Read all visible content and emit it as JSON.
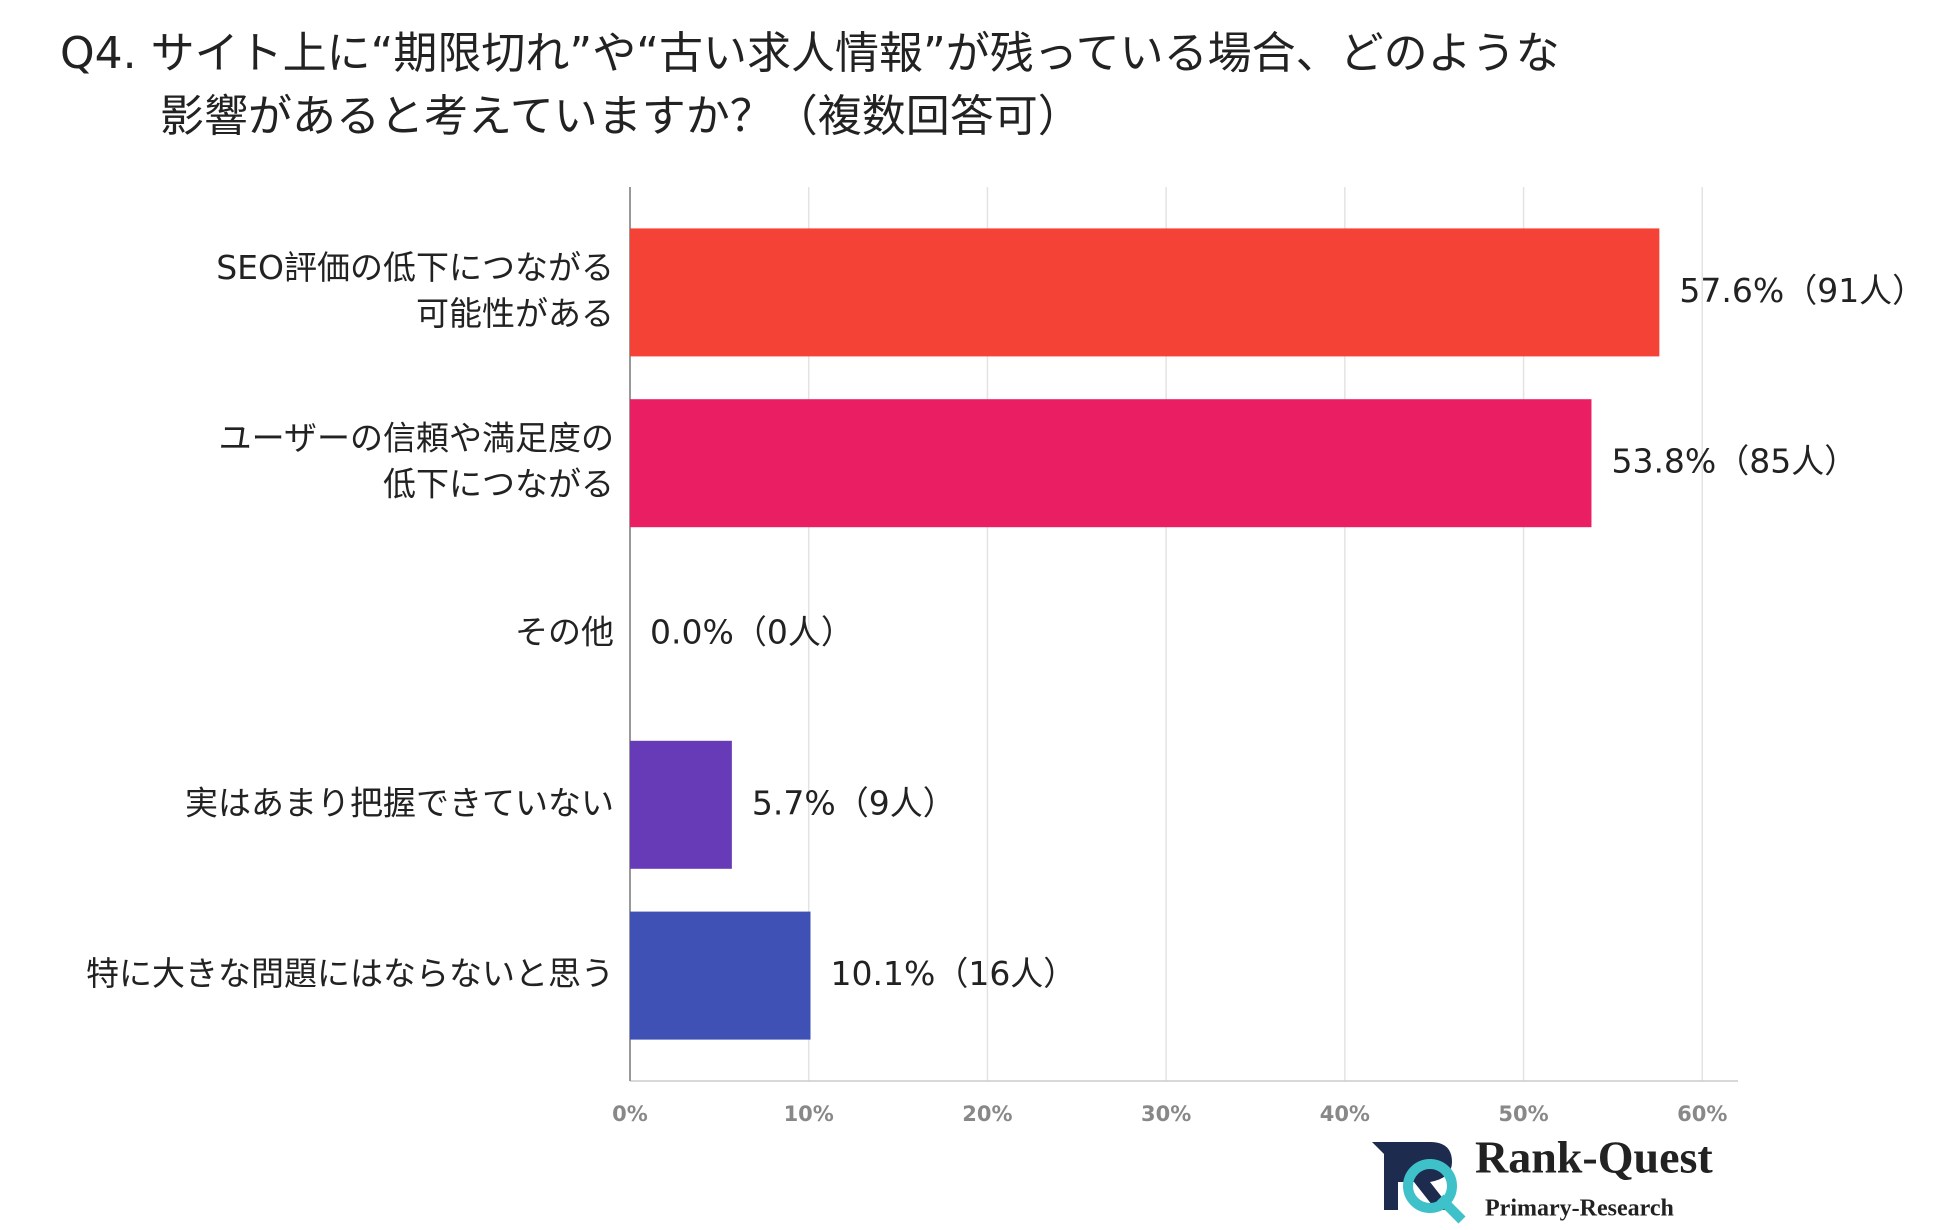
{
  "chart_data": {
    "type": "barh",
    "title_lines": [
      "Q4. サイト上に“期限切れ”や“古い求人情報”が残っている場合、どのような",
      "影響があると考えていますか？（複数回答可）"
    ],
    "categories": [
      [
        "SEO評価の低下につながる",
        "可能性がある"
      ],
      [
        "ユーザーの信頼や満足度の",
        "低下につながる"
      ],
      [
        "その他"
      ],
      [
        "実はあまり把握できていない"
      ],
      [
        "特に大きな問題にはならないと思う"
      ]
    ],
    "values": [
      57.6,
      53.8,
      0.0,
      5.7,
      10.1
    ],
    "value_labels": [
      "57.6%（91人）",
      "53.8%（85人）",
      "0.0%（0人）",
      "5.7%（9人）",
      "10.1%（16人）"
    ],
    "colors": [
      "#f44336",
      "#e91e63",
      "#9c27b0",
      "#673ab7",
      "#3f51b5"
    ],
    "xlim": [
      0,
      62
    ],
    "xticks": [
      {
        "value": 0,
        "label": "0%"
      },
      {
        "value": 10,
        "label": "10%"
      },
      {
        "value": 20,
        "label": "20%"
      },
      {
        "value": 30,
        "label": "30%"
      },
      {
        "value": 40,
        "label": "40%"
      },
      {
        "value": 50,
        "label": "50%"
      },
      {
        "value": 60,
        "label": "60%"
      }
    ],
    "grid": true,
    "logo": {
      "name": "Rank-Quest",
      "tagline": "Primary-Research"
    }
  }
}
